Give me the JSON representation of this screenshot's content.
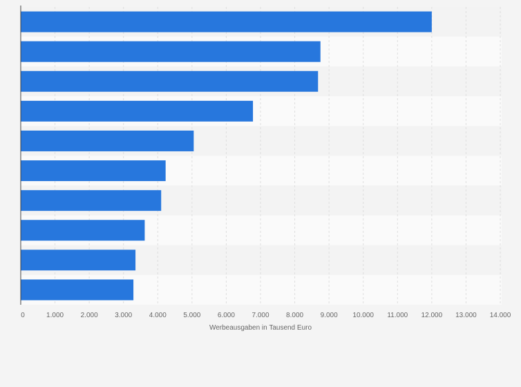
{
  "chart_data": {
    "type": "bar",
    "orientation": "horizontal",
    "categories": [
      "",
      "",
      "",
      "",
      "",
      "",
      "",
      "",
      "",
      ""
    ],
    "values": [
      12000,
      8750,
      8680,
      6780,
      5050,
      4230,
      4100,
      3620,
      3350,
      3290
    ],
    "xlabel": "Werbeausgaben in Tausend Euro",
    "ylabel": "",
    "xlim": [
      0,
      14000
    ],
    "tick_values": [
      0,
      1000,
      2000,
      3000,
      4000,
      5000,
      6000,
      7000,
      8000,
      9000,
      10000,
      11000,
      12000,
      13000,
      14000
    ],
    "tick_labels": [
      "0",
      "1.000",
      "2.000",
      "3.000",
      "4.000",
      "5.000",
      "6.000",
      "7.000",
      "8.000",
      "9.000",
      "10.000",
      "11.000",
      "12.000",
      "13.000",
      "14.000"
    ],
    "grid": true,
    "legend": "none",
    "colors": {
      "bar": "#2777dd",
      "band_dark": "#f3f3f3",
      "band_light": "#fafafa",
      "grid": "#dedede",
      "axis": "#444444",
      "text": "#666666"
    }
  }
}
